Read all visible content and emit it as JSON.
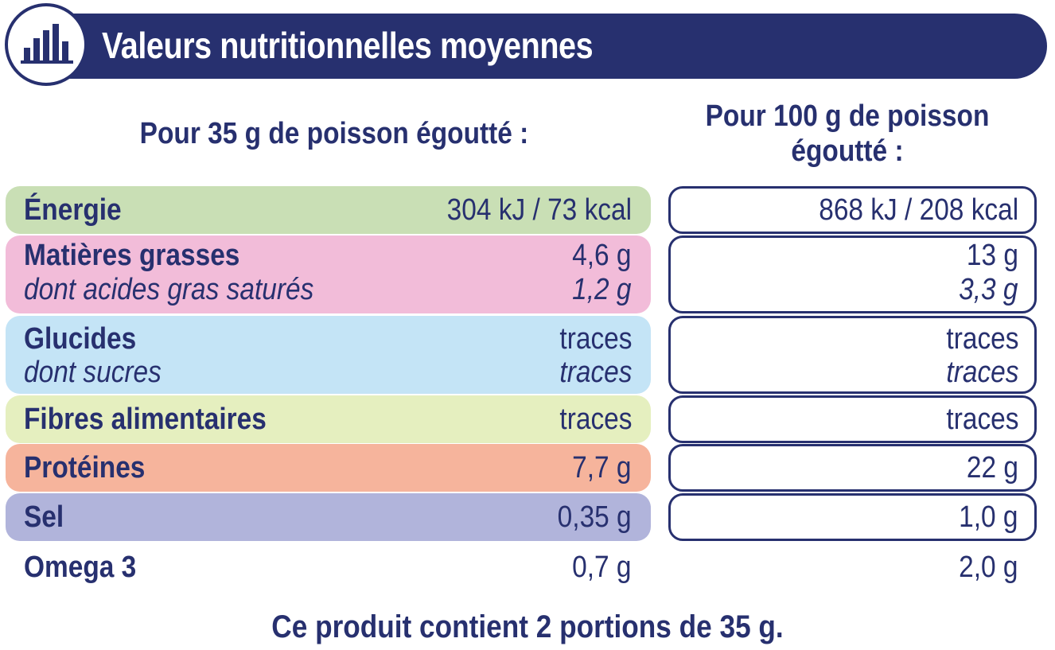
{
  "header": {
    "title": "Valeurs nutritionnelles moyennes",
    "icon": "bar-chart-icon",
    "color": "#27306f"
  },
  "columns": {
    "left": "Pour 35 g de poisson égoutté :",
    "right_line1": "Pour 100 g de poisson",
    "right_line2": "égoutté :"
  },
  "rows": [
    {
      "label": "Énergie",
      "per35": "304 kJ / 73 kcal",
      "per100": "868 kJ / 208 kcal",
      "color": "#c9dfb5"
    },
    {
      "label": "Matières grasses",
      "per35": "4,6 g",
      "per100": "13 g",
      "color": "#f2bcd9",
      "sub_label": "dont acides gras saturés",
      "sub_per35": "1,2 g",
      "sub_per100": "3,3 g"
    },
    {
      "label": "Glucides",
      "per35": "traces",
      "per100": "traces",
      "color": "#c4e4f6",
      "sub_label": "dont sucres",
      "sub_per35": "traces",
      "sub_per100": "traces"
    },
    {
      "label": "Fibres alimentaires",
      "per35": "traces",
      "per100": "traces",
      "color": "#e5efbf"
    },
    {
      "label": "Protéines",
      "per35": "7,7 g",
      "per100": "22 g",
      "color": "#f6b49c"
    },
    {
      "label": "Sel",
      "per35": "0,35 g",
      "per100": "1,0 g",
      "color": "#b1b4db"
    },
    {
      "label": "Omega 3",
      "per35": "0,7 g",
      "per100": "2,0 g"
    }
  ],
  "footer": "Ce produit contient 2 portions de 35 g."
}
